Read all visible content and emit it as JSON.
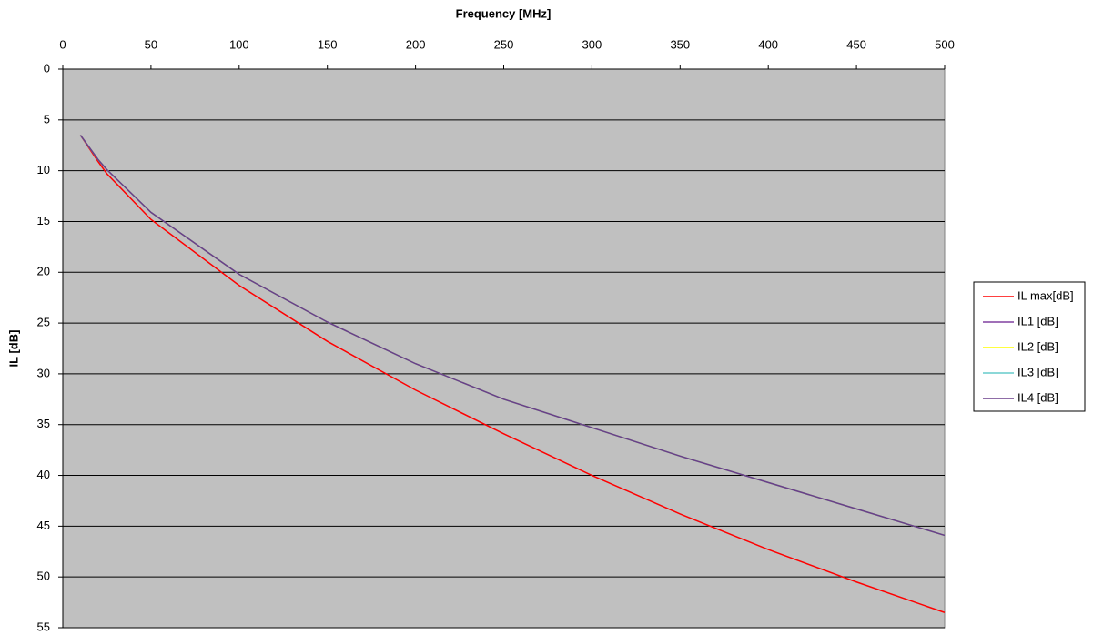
{
  "chart_data": {
    "type": "line",
    "x_label": "Frequency [MHz]",
    "y_label": "IL [dB]",
    "x": [
      10,
      20,
      25,
      50,
      100,
      150,
      200,
      250,
      300,
      350,
      400,
      450,
      500
    ],
    "series": [
      {
        "name": "IL max[dB]",
        "color": "#ff0000",
        "values": [
          6.5,
          9.1,
          10.3,
          14.8,
          21.3,
          26.8,
          31.6,
          35.9,
          40.0,
          43.8,
          47.3,
          50.5,
          53.5
        ]
      },
      {
        "name": "IL1 [dB]",
        "color": "#8040a0",
        "values": [
          6.5,
          8.9,
          9.9,
          14.1,
          20.2,
          24.9,
          29.0,
          32.5,
          35.3,
          38.1,
          40.7,
          43.3,
          45.9
        ]
      },
      {
        "name": "IL2 [dB]",
        "color": "#ffff00",
        "values": [
          6.5,
          8.9,
          9.9,
          14.1,
          20.2,
          24.9,
          29.0,
          32.5,
          35.3,
          38.1,
          40.7,
          43.3,
          45.9
        ]
      },
      {
        "name": "IL3 [dB]",
        "color": "#66cccc",
        "values": [
          6.5,
          8.9,
          9.9,
          14.1,
          20.2,
          24.9,
          29.0,
          32.5,
          35.3,
          38.1,
          40.7,
          43.3,
          45.9
        ]
      },
      {
        "name": "IL4 [dB]",
        "color": "#6a3d8a",
        "values": [
          6.5,
          8.9,
          9.9,
          14.1,
          20.2,
          24.9,
          29.0,
          32.5,
          35.3,
          38.1,
          40.7,
          43.3,
          45.9
        ]
      }
    ],
    "xlim": [
      0,
      500
    ],
    "xticks": [
      0,
      50,
      100,
      150,
      200,
      250,
      300,
      350,
      400,
      450,
      500
    ],
    "ylim": [
      0,
      55
    ],
    "yticks": [
      0,
      5,
      10,
      15,
      20,
      25,
      30,
      35,
      40,
      45,
      50,
      55
    ],
    "y_inverted": true,
    "x_axis_top": true,
    "grid": true,
    "legend": "right",
    "plot_background": "#c0c0c0"
  }
}
